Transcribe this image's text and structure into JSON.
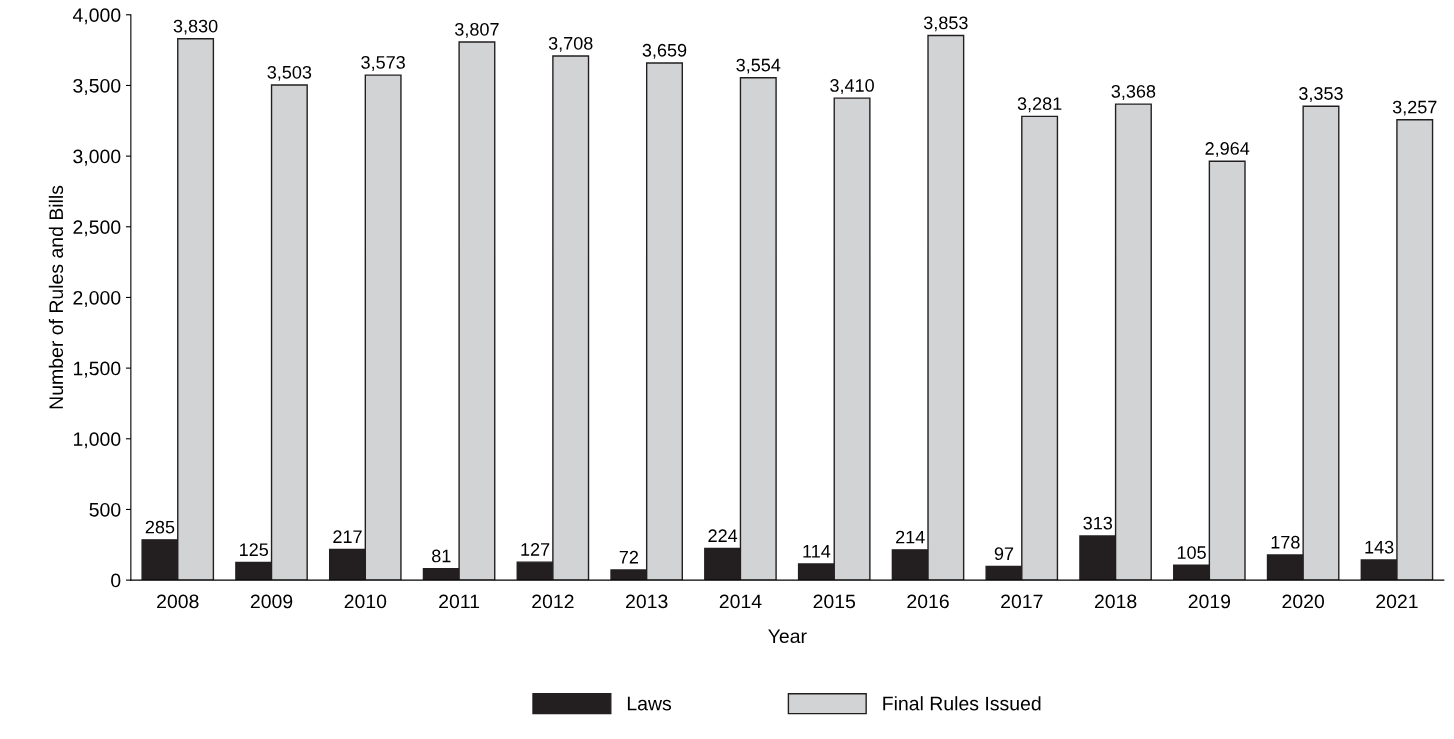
{
  "chart_data": {
    "type": "bar",
    "xlabel": "Year",
    "ylabel": "Number of Rules and Bills",
    "categories": [
      "2008",
      "2009",
      "2010",
      "2011",
      "2012",
      "2013",
      "2014",
      "2015",
      "2016",
      "2017",
      "2018",
      "2019",
      "2020",
      "2021"
    ],
    "series": [
      {
        "name": "Laws",
        "color": "#231f20",
        "values": [
          285,
          125,
          217,
          81,
          127,
          72,
          224,
          114,
          214,
          97,
          313,
          105,
          178,
          143
        ],
        "value_labels": [
          "285",
          "125",
          "217",
          "81",
          "127",
          "72",
          "224",
          "114",
          "214",
          "97",
          "313",
          "105",
          "178",
          "143"
        ]
      },
      {
        "name": "Final Rules Issued",
        "color": "#d1d3d4",
        "values": [
          3830,
          3503,
          3573,
          3807,
          3708,
          3659,
          3554,
          3410,
          3853,
          3281,
          3368,
          2964,
          3353,
          3257
        ],
        "value_labels": [
          "3,830",
          "3,503",
          "3,573",
          "3,807",
          "3,708",
          "3,659",
          "3,554",
          "3,410",
          "3,853",
          "3,281",
          "3,368",
          "2,964",
          "3,353",
          "3,257"
        ]
      }
    ],
    "ylim": [
      0,
      4000
    ],
    "yticks": [
      {
        "value": 0,
        "label": "0"
      },
      {
        "value": 500,
        "label": "500"
      },
      {
        "value": 1000,
        "label": "1,000"
      },
      {
        "value": 1500,
        "label": "1,500"
      },
      {
        "value": 2000,
        "label": "2,000"
      },
      {
        "value": 2500,
        "label": "2,500"
      },
      {
        "value": 3000,
        "label": "3,000"
      },
      {
        "value": 3500,
        "label": "3,500"
      },
      {
        "value": 4000,
        "label": "4,000"
      }
    ],
    "legend": "bottom",
    "grid": false
  }
}
